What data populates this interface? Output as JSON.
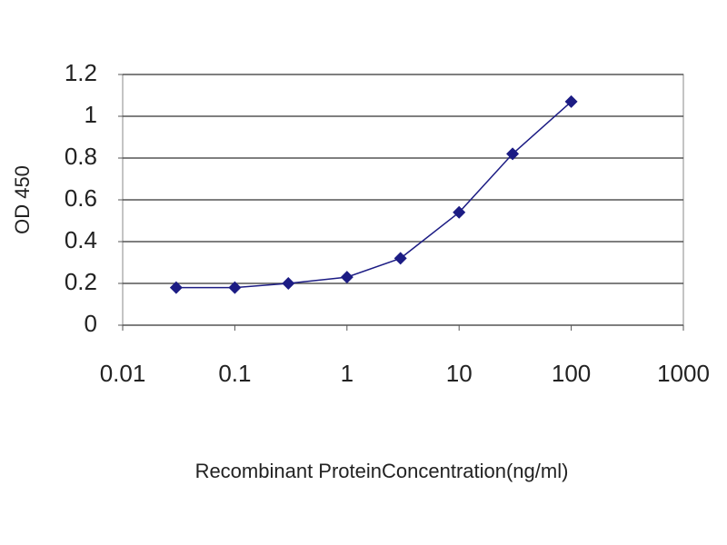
{
  "chart_data": {
    "type": "line",
    "x_label": "Recombinant ProteinConcentration(ng/ml)",
    "y_label": "OD 450",
    "x": [
      0.03,
      0.1,
      0.3,
      1,
      3,
      10,
      30,
      100
    ],
    "series": [
      {
        "name": "OD 450",
        "color": "#1c1c84",
        "values": [
          0.18,
          0.18,
          0.2,
          0.23,
          0.32,
          0.54,
          0.82,
          1.07
        ]
      }
    ],
    "xscale": "log",
    "xlim": [
      0.01,
      1000
    ],
    "xticks": [
      0.01,
      0.1,
      1,
      10,
      100,
      1000
    ],
    "ylim": [
      0,
      1.2
    ],
    "yticks": [
      0,
      0.2,
      0.4,
      0.6,
      0.8,
      1,
      1.2
    ],
    "grid": true
  }
}
